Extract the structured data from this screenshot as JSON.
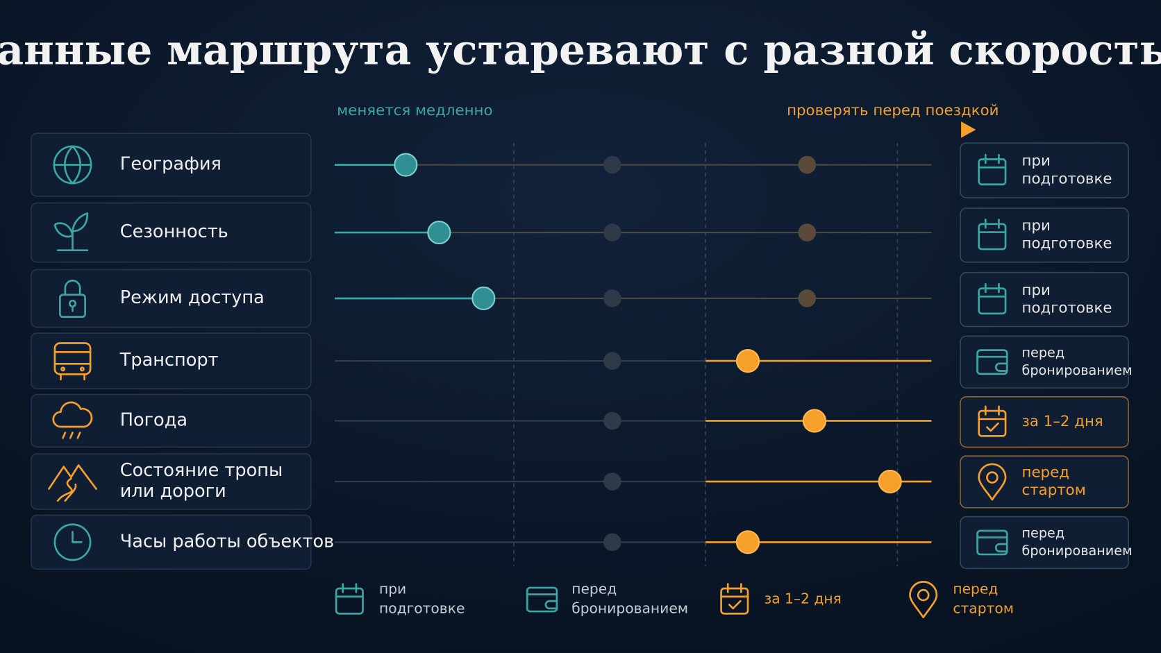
{
  "title": "Данные маршрута устаревают с разной скоростью",
  "axis": {
    "left": "меняется медленно",
    "right": "проверять перед поездкой"
  },
  "rows": [
    {
      "label": [
        "География"
      ],
      "check": [
        "при",
        "подготовке"
      ]
    },
    {
      "label": [
        "Сезонность"
      ],
      "check": [
        "при",
        "подготовке"
      ]
    },
    {
      "label": [
        "Режим доступа"
      ],
      "check": [
        "при",
        "подготовке"
      ]
    },
    {
      "label": [
        "Транспорт"
      ],
      "check": [
        "перед",
        "бронированием"
      ]
    },
    {
      "label": [
        "Погода"
      ],
      "check": [
        "за 1–2 дня"
      ]
    },
    {
      "label": [
        "Состояние тропы",
        "или дороги"
      ],
      "check": [
        "перед",
        "стартом"
      ]
    },
    {
      "label": [
        "Часы работы объектов"
      ],
      "check": [
        "перед",
        "бронированием"
      ]
    }
  ],
  "legend": [
    {
      "text": [
        "при",
        "подготовке"
      ]
    },
    {
      "text": [
        "перед",
        "бронированием"
      ]
    },
    {
      "text": [
        "за 1–2 дня"
      ]
    },
    {
      "text": [
        "перед",
        "стартом"
      ]
    }
  ]
}
